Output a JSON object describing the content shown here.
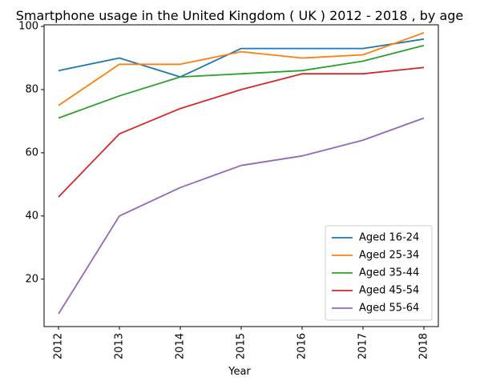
{
  "chart_data": {
    "type": "line",
    "title": "Smartphone usage in the United Kingdom ( UK ) 2012 - 2018 , by age",
    "xlabel": "Year",
    "ylabel": "",
    "categories": [
      "2012",
      "2013",
      "2014",
      "2015",
      "2016",
      "2017",
      "2018"
    ],
    "ylim": [
      5,
      100.5
    ],
    "yticks": [
      20,
      40,
      60,
      80,
      100
    ],
    "grid": false,
    "legend_position": "lower-right",
    "series": [
      {
        "name": "Aged 16-24",
        "color": "#1f77b4",
        "values": [
          86,
          90,
          84,
          93,
          93,
          93,
          96
        ]
      },
      {
        "name": "Aged 25-34",
        "color": "#ff7f0e",
        "values": [
          75,
          88,
          88,
          92,
          90,
          91,
          98
        ]
      },
      {
        "name": "Aged 35-44",
        "color": "#2ca02c",
        "values": [
          71,
          78,
          84,
          85,
          86,
          89,
          94
        ]
      },
      {
        "name": "Aged 45-54",
        "color": "#d62728",
        "values": [
          46,
          66,
          74,
          80,
          85,
          85,
          87
        ]
      },
      {
        "name": "Aged 55-64",
        "color": "#9467bd",
        "values": [
          9,
          40,
          49,
          56,
          59,
          64,
          71
        ]
      }
    ]
  }
}
